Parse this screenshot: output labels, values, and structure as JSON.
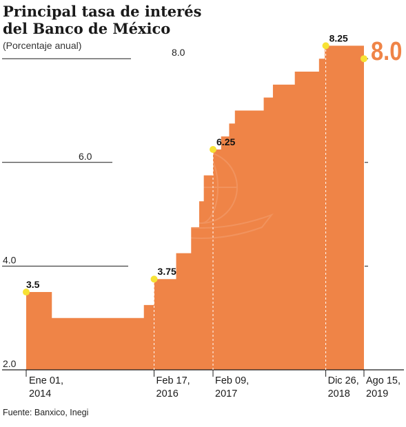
{
  "chart_data": {
    "type": "area",
    "title": "Principal tasa de interés del Banco de México",
    "subtitle": "(Porcentaje anual)",
    "source": "Fuente: Banxico, Inegi",
    "ylim": [
      2.0,
      8.3
    ],
    "yticks": [
      "2.0",
      "4.0",
      "6.0",
      "8.0"
    ],
    "xlabels": [
      {
        "date": "2014-01-01",
        "line1": "Ene 01,",
        "line2": "2014"
      },
      {
        "date": "2016-02-17",
        "line1": "Feb 17,",
        "line2": "2016"
      },
      {
        "date": "2017-02-09",
        "line1": "Feb 09,",
        "line2": "2017"
      },
      {
        "date": "2018-12-26",
        "line1": "Dic 26,",
        "line2": "2018"
      },
      {
        "date": "2019-08-15",
        "line1": "Ago 15,",
        "line2": "2019"
      }
    ],
    "series": [
      {
        "steps": [
          {
            "date": "2014-01-01",
            "value": 3.5
          },
          {
            "date": "2014-06-06",
            "value": 3.0
          },
          {
            "date": "2015-12-17",
            "value": 3.25
          },
          {
            "date": "2016-02-17",
            "value": 3.75
          },
          {
            "date": "2016-06-30",
            "value": 4.25
          },
          {
            "date": "2016-09-29",
            "value": 4.75
          },
          {
            "date": "2016-11-17",
            "value": 5.25
          },
          {
            "date": "2016-12-15",
            "value": 5.75
          },
          {
            "date": "2017-02-09",
            "value": 6.25
          },
          {
            "date": "2017-03-30",
            "value": 6.5
          },
          {
            "date": "2017-05-18",
            "value": 6.75
          },
          {
            "date": "2017-06-22",
            "value": 7.0
          },
          {
            "date": "2017-12-14",
            "value": 7.25
          },
          {
            "date": "2018-02-08",
            "value": 7.5
          },
          {
            "date": "2018-06-21",
            "value": 7.75
          },
          {
            "date": "2018-11-15",
            "value": 8.0
          },
          {
            "date": "2018-12-20",
            "value": 8.25
          },
          {
            "date": "2019-08-15",
            "value": 8.0
          }
        ]
      }
    ],
    "annotations": [
      {
        "date": "2014-01-01",
        "value": 3.5,
        "label": "3.5"
      },
      {
        "date": "2016-02-17",
        "value": 3.75,
        "label": "3.75"
      },
      {
        "date": "2017-02-09",
        "value": 6.25,
        "label": "6.25"
      },
      {
        "date": "2018-12-26",
        "value": 8.25,
        "label": "8.25"
      },
      {
        "date": "2019-08-15",
        "value": 8.0,
        "label": "8.0",
        "highlight": true
      }
    ],
    "colors": {
      "area": "#ef8447",
      "marker": "#f7e234",
      "highlight": "#ef8447",
      "grid": "#1a1a1a"
    }
  }
}
